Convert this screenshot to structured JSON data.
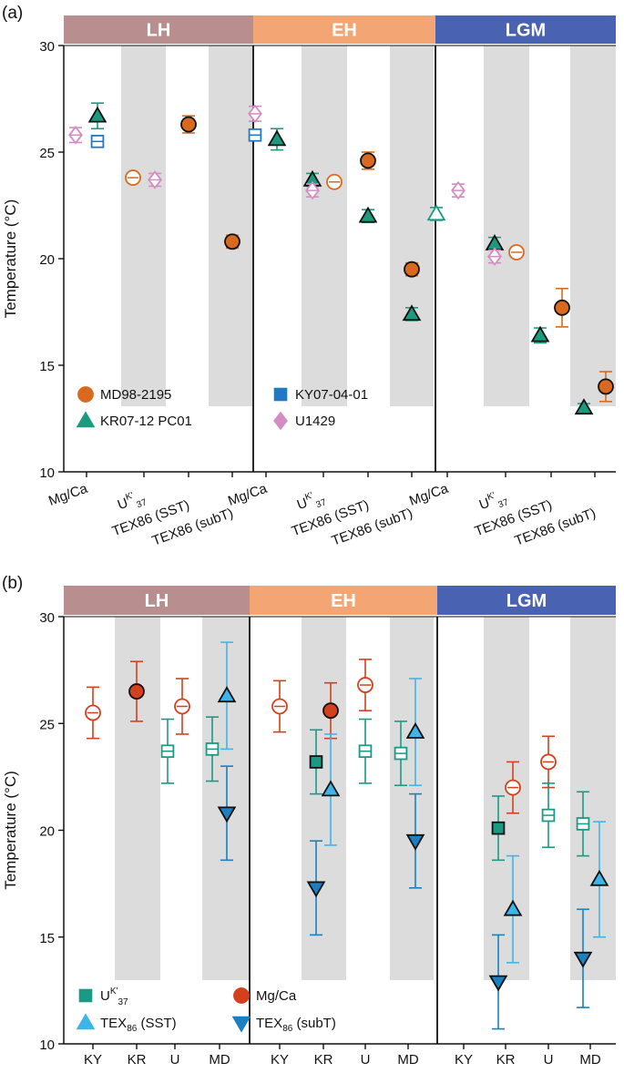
{
  "colors": {
    "LH": "#b98e8e",
    "EH": "#f3a574",
    "LGM": "#4a62b2",
    "shade": "#dcdcdc",
    "MD98-2195": "#d9691f",
    "KR07-12 PC01": "#1a9b7d",
    "KY07-04-01": "#2178c4",
    "U1429": "#d48cc2",
    "uk37_b": "#199a84",
    "mgca_b": "#d4401c",
    "tex_sst_b": "#3eb5ea",
    "tex_sub_b": "#1a80c0"
  },
  "chart_data": [
    {
      "panel_label": "(a)",
      "type": "scatter",
      "ylabel": "Temperature (°C)",
      "ylim": [
        10,
        30
      ],
      "yticks": [
        "10",
        "15",
        "20",
        "25",
        "30"
      ],
      "periods": [
        "LH",
        "EH",
        "LGM"
      ],
      "categories": [
        "Mg/Ca",
        "U",
        "TEX86 (SST)",
        "TEX86 (subT)"
      ],
      "legend": [
        {
          "name": "MD98-2195",
          "marker": "circle"
        },
        {
          "name": "KY07-04-01",
          "marker": "square"
        },
        {
          "name": "KR07-12 PC01",
          "marker": "triangle"
        },
        {
          "name": "U1429",
          "marker": "diamond"
        }
      ],
      "points": [
        {
          "period": "LH",
          "cat": 0,
          "off": -0.25,
          "series": "U1429",
          "marker": "diamond",
          "filled": false,
          "y": 25.8,
          "err": 0.35
        },
        {
          "period": "LH",
          "cat": 0,
          "off": 0.25,
          "series": "KY07-04-01",
          "marker": "square",
          "filled": false,
          "y": 25.5,
          "err": 0.25
        },
        {
          "period": "LH",
          "cat": 0,
          "off": 0.25,
          "series": "KR07-12 PC01",
          "marker": "triangle",
          "filled": true,
          "y": 26.7,
          "err": 0.6
        },
        {
          "period": "LH",
          "cat": 1,
          "off": -0.25,
          "series": "MD98-2195",
          "marker": "circle",
          "filled": false,
          "y": 23.8,
          "err": 0.15
        },
        {
          "period": "LH",
          "cat": 1,
          "off": 0.25,
          "series": "U1429",
          "marker": "diamond",
          "filled": false,
          "y": 23.7,
          "err": 0.3
        },
        {
          "period": "LH",
          "cat": 2,
          "off": 0,
          "series": "MD98-2195",
          "marker": "circle",
          "filled": true,
          "y": 26.3,
          "err": 0.4
        },
        {
          "period": "LH",
          "cat": 3,
          "off": 0,
          "series": "MD98-2195",
          "marker": "circle",
          "filled": true,
          "y": 20.8,
          "err": 0.3
        },
        {
          "period": "EH",
          "cat": 0,
          "off": -0.25,
          "series": "U1429",
          "marker": "diamond",
          "filled": false,
          "y": 26.8,
          "err": 0.35
        },
        {
          "period": "EH",
          "cat": 0,
          "off": -0.25,
          "series": "KY07-04-01",
          "marker": "square",
          "filled": false,
          "y": 25.8,
          "err": 0.25
        },
        {
          "period": "EH",
          "cat": 0,
          "off": 0.25,
          "series": "KR07-12 PC01",
          "marker": "triangle",
          "filled": true,
          "y": 25.6,
          "err": 0.5
        },
        {
          "period": "EH",
          "cat": 1,
          "off": -0.25,
          "series": "KR07-12 PC01",
          "marker": "triangle",
          "filled": true,
          "y": 23.7,
          "err": 0.3
        },
        {
          "period": "EH",
          "cat": 1,
          "off": -0.25,
          "series": "U1429",
          "marker": "diamond",
          "filled": false,
          "y": 23.2,
          "err": 0.3
        },
        {
          "period": "EH",
          "cat": 1,
          "off": 0.25,
          "series": "MD98-2195",
          "marker": "circle",
          "filled": false,
          "y": 23.6,
          "err": 0.2
        },
        {
          "period": "EH",
          "cat": 2,
          "off": 0,
          "series": "MD98-2195",
          "marker": "circle",
          "filled": true,
          "y": 24.6,
          "err": 0.4
        },
        {
          "period": "EH",
          "cat": 2,
          "off": 0,
          "series": "KR07-12 PC01",
          "marker": "triangle",
          "filled": true,
          "y": 22.0,
          "err": 0.3
        },
        {
          "period": "EH",
          "cat": 3,
          "off": 0,
          "series": "MD98-2195",
          "marker": "circle",
          "filled": true,
          "y": 19.5,
          "err": 0.3
        },
        {
          "period": "EH",
          "cat": 3,
          "off": 0,
          "series": "KR07-12 PC01",
          "marker": "triangle",
          "filled": true,
          "y": 17.4,
          "err": 0.3
        },
        {
          "period": "LGM",
          "cat": 0,
          "off": -0.25,
          "series": "KR07-12 PC01",
          "marker": "triangle",
          "filled": false,
          "y": 22.1,
          "err": 0.3
        },
        {
          "period": "LGM",
          "cat": 0,
          "off": 0.25,
          "series": "U1429",
          "marker": "diamond",
          "filled": false,
          "y": 23.2,
          "err": 0.3
        },
        {
          "period": "LGM",
          "cat": 1,
          "off": -0.25,
          "series": "KR07-12 PC01",
          "marker": "triangle",
          "filled": true,
          "y": 20.7,
          "err": 0.3
        },
        {
          "period": "LGM",
          "cat": 1,
          "off": -0.25,
          "series": "U1429",
          "marker": "diamond",
          "filled": false,
          "y": 20.1,
          "err": 0.3
        },
        {
          "period": "LGM",
          "cat": 1,
          "off": 0.25,
          "series": "MD98-2195",
          "marker": "circle",
          "filled": false,
          "y": 20.3,
          "err": 0.2
        },
        {
          "period": "LGM",
          "cat": 2,
          "off": -0.25,
          "series": "KR07-12 PC01",
          "marker": "triangle",
          "filled": true,
          "y": 16.4,
          "err": 0.35
        },
        {
          "period": "LGM",
          "cat": 2,
          "off": 0.25,
          "series": "MD98-2195",
          "marker": "circle",
          "filled": true,
          "y": 17.7,
          "err": 0.9
        },
        {
          "period": "LGM",
          "cat": 3,
          "off": -0.25,
          "series": "KR07-12 PC01",
          "marker": "triangle",
          "filled": true,
          "y": 13.0,
          "err": 0.2
        },
        {
          "period": "LGM",
          "cat": 3,
          "off": 0.25,
          "series": "MD98-2195",
          "marker": "circle",
          "filled": true,
          "y": 14.0,
          "err": 0.7
        }
      ]
    },
    {
      "panel_label": "(b)",
      "type": "scatter",
      "ylabel": "Temperature (°C)",
      "ylim": [
        10,
        30
      ],
      "yticks": [
        "10",
        "15",
        "20",
        "25",
        "30"
      ],
      "periods": [
        "LH",
        "EH",
        "LGM"
      ],
      "categories": [
        "KY",
        "KR",
        "U",
        "MD"
      ],
      "legend": [
        {
          "name": "U",
          "marker": "square",
          "color_key": "uk37_b"
        },
        {
          "name": "Mg/Ca",
          "marker": "circle",
          "color_key": "mgca_b"
        },
        {
          "name": "TEX",
          "marker": "triangle",
          "color_key": "tex_sst_b",
          "suffix": "(SST)"
        },
        {
          "name": "TEX",
          "marker": "triangle-down",
          "color_key": "tex_sub_b",
          "suffix": "(subT)"
        }
      ],
      "points": [
        {
          "period": "LH",
          "cat": 0,
          "off": 0,
          "color_key": "mgca_b",
          "marker": "circle",
          "filled": false,
          "y": 25.5,
          "err": 1.2
        },
        {
          "period": "LH",
          "cat": 1,
          "off": 0,
          "color_key": "mgca_b",
          "marker": "circle",
          "filled": true,
          "y": 26.5,
          "err": 1.4
        },
        {
          "period": "LH",
          "cat": 2,
          "off": -0.2,
          "color_key": "uk37_b",
          "marker": "square",
          "filled": false,
          "y": 23.7,
          "err": 1.5
        },
        {
          "period": "LH",
          "cat": 2,
          "off": 0.2,
          "color_key": "mgca_b",
          "marker": "circle",
          "filled": false,
          "y": 25.8,
          "err": 1.3
        },
        {
          "period": "LH",
          "cat": 3,
          "off": -0.2,
          "color_key": "uk37_b",
          "marker": "square",
          "filled": false,
          "y": 23.8,
          "err": 1.5
        },
        {
          "period": "LH",
          "cat": 3,
          "off": 0.2,
          "color_key": "tex_sst_b",
          "marker": "triangle",
          "filled": true,
          "y": 26.3,
          "err": 2.5
        },
        {
          "period": "LH",
          "cat": 3,
          "off": 0.2,
          "color_key": "tex_sub_b",
          "marker": "triangle-down",
          "filled": true,
          "y": 20.8,
          "err": 2.2
        },
        {
          "period": "EH",
          "cat": 0,
          "off": 0,
          "color_key": "mgca_b",
          "marker": "circle",
          "filled": false,
          "y": 25.8,
          "err": 1.2
        },
        {
          "period": "EH",
          "cat": 1,
          "off": -0.2,
          "color_key": "uk37_b",
          "marker": "square",
          "filled": true,
          "y": 23.2,
          "err": 1.5
        },
        {
          "period": "EH",
          "cat": 1,
          "off": -0.2,
          "color_key": "tex_sub_b",
          "marker": "triangle-down",
          "filled": true,
          "y": 17.3,
          "err": 2.2
        },
        {
          "period": "EH",
          "cat": 1,
          "off": 0.2,
          "color_key": "mgca_b",
          "marker": "circle",
          "filled": true,
          "y": 25.6,
          "err": 1.3
        },
        {
          "period": "EH",
          "cat": 1,
          "off": 0.2,
          "color_key": "tex_sst_b",
          "marker": "triangle",
          "filled": true,
          "y": 21.9,
          "err": 2.6
        },
        {
          "period": "EH",
          "cat": 2,
          "off": 0,
          "color_key": "mgca_b",
          "marker": "circle",
          "filled": false,
          "y": 26.8,
          "err": 1.2
        },
        {
          "period": "EH",
          "cat": 2,
          "off": 0,
          "color_key": "uk37_b",
          "marker": "square",
          "filled": false,
          "y": 23.7,
          "err": 1.5
        },
        {
          "period": "EH",
          "cat": 3,
          "off": -0.2,
          "color_key": "uk37_b",
          "marker": "square",
          "filled": false,
          "y": 23.6,
          "err": 1.5
        },
        {
          "period": "EH",
          "cat": 3,
          "off": 0.2,
          "color_key": "tex_sst_b",
          "marker": "triangle",
          "filled": true,
          "y": 24.6,
          "err": 2.5
        },
        {
          "period": "EH",
          "cat": 3,
          "off": 0.2,
          "color_key": "tex_sub_b",
          "marker": "triangle-down",
          "filled": true,
          "y": 19.5,
          "err": 2.2
        },
        {
          "period": "LGM",
          "cat": 1,
          "off": -0.2,
          "color_key": "uk37_b",
          "marker": "square",
          "filled": true,
          "y": 20.1,
          "err": 1.5
        },
        {
          "period": "LGM",
          "cat": 1,
          "off": -0.2,
          "color_key": "tex_sub_b",
          "marker": "triangle-down",
          "filled": true,
          "y": 12.9,
          "err": 2.2
        },
        {
          "period": "LGM",
          "cat": 1,
          "off": 0.2,
          "color_key": "mgca_b",
          "marker": "circle",
          "filled": false,
          "y": 22.0,
          "err": 1.2
        },
        {
          "period": "LGM",
          "cat": 1,
          "off": 0.2,
          "color_key": "tex_sst_b",
          "marker": "triangle",
          "filled": true,
          "y": 16.3,
          "err": 2.5
        },
        {
          "period": "LGM",
          "cat": 2,
          "off": 0,
          "color_key": "mgca_b",
          "marker": "circle",
          "filled": false,
          "y": 23.2,
          "err": 1.2
        },
        {
          "period": "LGM",
          "cat": 2,
          "off": 0,
          "color_key": "uk37_b",
          "marker": "square",
          "filled": false,
          "y": 20.7,
          "err": 1.5
        },
        {
          "period": "LGM",
          "cat": 3,
          "off": -0.2,
          "color_key": "uk37_b",
          "marker": "square",
          "filled": false,
          "y": 20.3,
          "err": 1.5
        },
        {
          "period": "LGM",
          "cat": 3,
          "off": -0.2,
          "color_key": "tex_sub_b",
          "marker": "triangle-down",
          "filled": true,
          "y": 14.0,
          "err": 2.3
        },
        {
          "period": "LGM",
          "cat": 3,
          "off": 0.25,
          "color_key": "tex_sst_b",
          "marker": "triangle",
          "filled": true,
          "y": 17.7,
          "err": 2.7
        }
      ]
    }
  ]
}
